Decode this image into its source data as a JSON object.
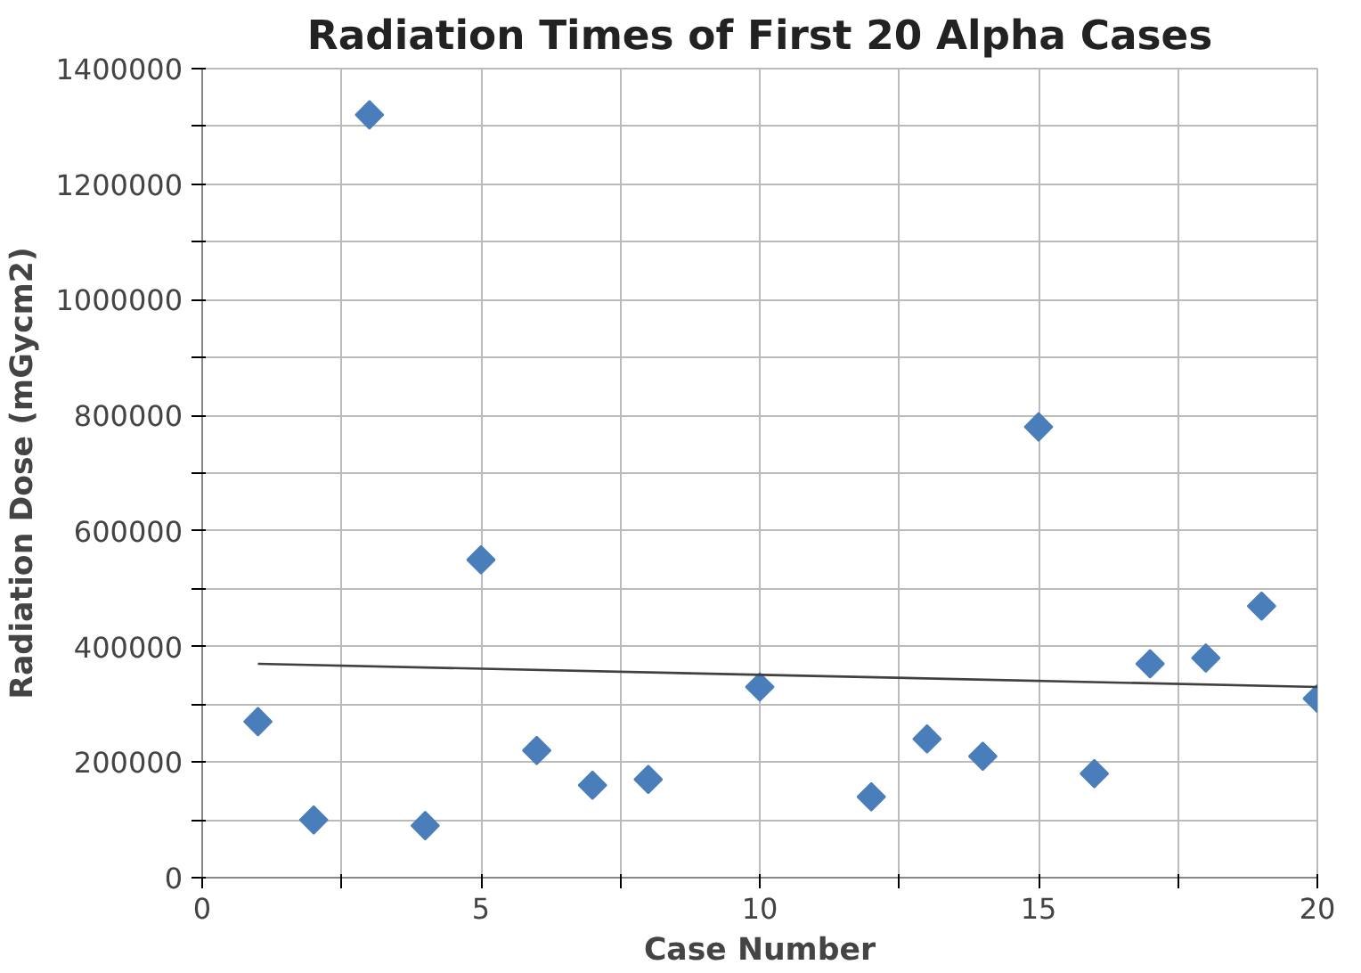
{
  "chart_data": {
    "type": "scatter",
    "title": "Radiation Times of First 20 Alpha Cases",
    "xlabel": "Case Number",
    "ylabel": "Radiation Dose (mGycm2)",
    "xlim": [
      0,
      20
    ],
    "ylim": [
      0,
      1400000
    ],
    "xticks": [
      0,
      {
        "value": 2.5,
        "label": null
      },
      5,
      {
        "value": 7.5,
        "label": null
      },
      10,
      {
        "value": 12.5,
        "label": null
      },
      15,
      {
        "value": 17.5,
        "label": null
      },
      20
    ],
    "yticks": [
      0,
      {
        "value": 100000,
        "label": null
      },
      200000,
      {
        "value": 300000,
        "label": null
      },
      400000,
      {
        "value": 500000,
        "label": null
      },
      600000,
      {
        "value": 700000,
        "label": null
      },
      800000,
      {
        "value": 900000,
        "label": null
      },
      1000000,
      {
        "value": 1100000,
        "label": null
      },
      1200000,
      {
        "value": 1300000,
        "label": null
      },
      1400000
    ],
    "grid": true,
    "series": [
      {
        "marker": "diamond",
        "color": "#4a7ebb",
        "x": [
          1,
          2,
          3,
          4,
          5,
          6,
          7,
          8,
          10,
          12,
          13,
          14,
          15,
          16,
          17,
          18,
          19,
          20
        ],
        "values": [
          270000,
          100000,
          1320000,
          90000,
          550000,
          220000,
          160000,
          170000,
          330000,
          140000,
          240000,
          210000,
          780000,
          180000,
          370000,
          380000,
          470000,
          310000
        ]
      },
      {
        "type": "line",
        "marker": "none",
        "line_style": "solid",
        "color": "#404040",
        "x": [
          1,
          20
        ],
        "values": [
          370000,
          330000
        ]
      }
    ]
  }
}
